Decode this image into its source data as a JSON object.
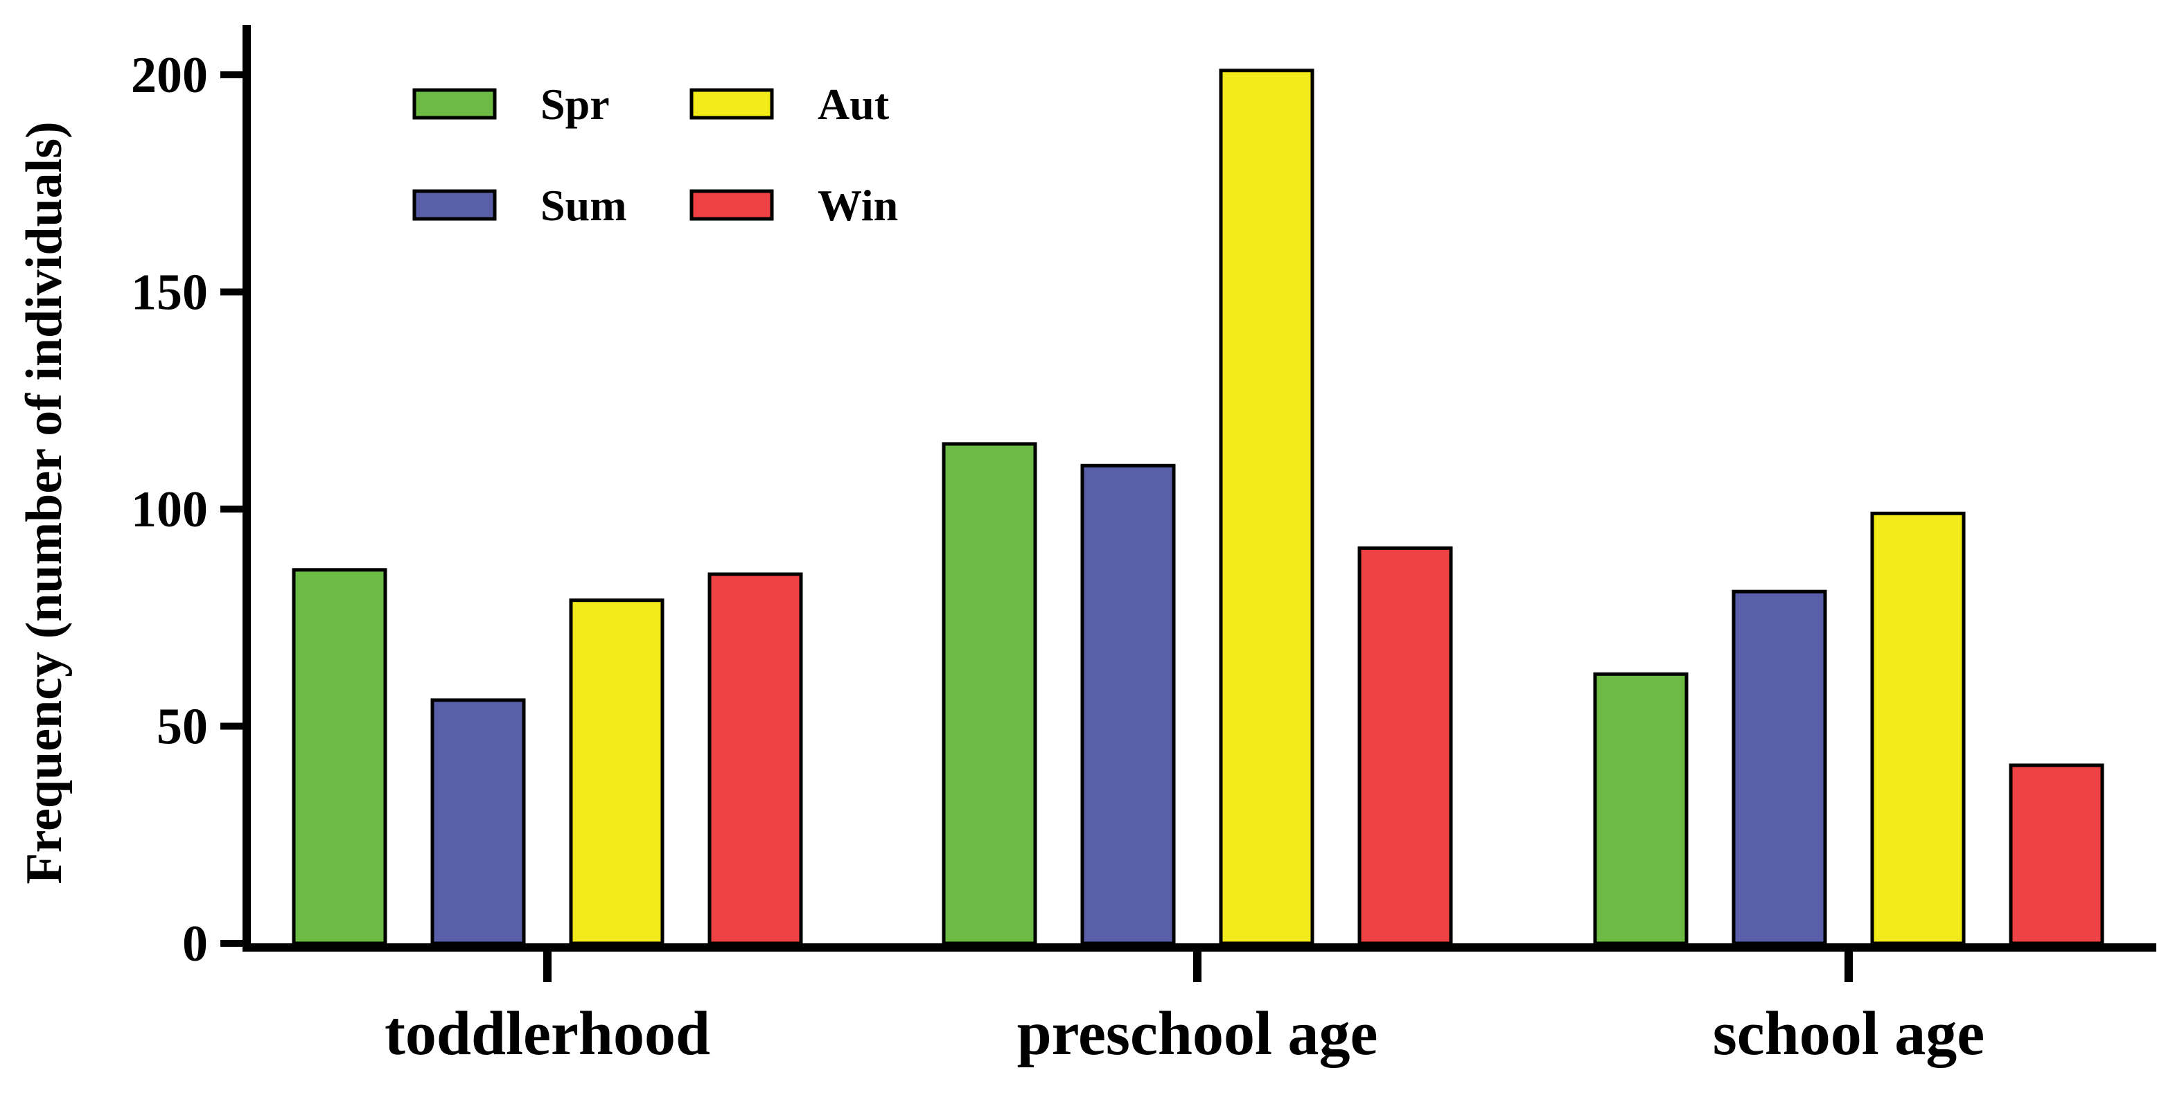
{
  "chart_data": {
    "type": "bar",
    "title": "",
    "xlabel": "",
    "ylabel": "Frequency (number of individuals)",
    "ylim": [
      0,
      210
    ],
    "yticks": [
      0,
      50,
      100,
      150,
      200
    ],
    "categories": [
      "toddlerhood",
      "preschool age",
      "school age"
    ],
    "series": [
      {
        "name": "Spr",
        "color": "#6bbb44",
        "values": [
          86,
          115,
          62
        ]
      },
      {
        "name": "Sum",
        "color": "#5a5faa",
        "values": [
          56,
          110,
          81
        ]
      },
      {
        "name": "Aut",
        "color": "#f2ea1a",
        "values": [
          79,
          201,
          99
        ]
      },
      {
        "name": "Win",
        "color": "#ee4245",
        "values": [
          85,
          91,
          41
        ]
      }
    ],
    "legend": {
      "position": "top-left",
      "columns": 2,
      "order": [
        "Spr",
        "Aut",
        "Sum",
        "Win"
      ]
    },
    "grid": false
  }
}
